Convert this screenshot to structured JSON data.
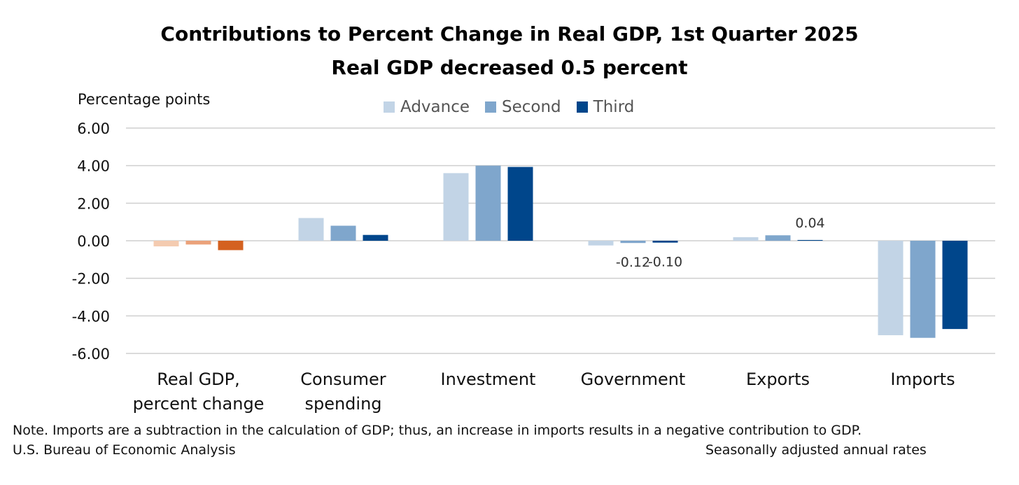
{
  "chart_data": {
    "type": "bar",
    "title": "Contributions to Percent Change in Real GDP, 1st Quarter 2025",
    "subtitle": "Real GDP decreased 0.5 percent",
    "ylabel": "Percentage points",
    "ylim": [
      -6,
      6
    ],
    "yticks": [
      "6.00",
      "4.00",
      "2.00",
      "0.00",
      "-2.00",
      "-4.00",
      "-6.00"
    ],
    "grid": true,
    "legend_position": "top",
    "categories": [
      [
        "Real GDP,",
        "percent change"
      ],
      [
        "Consumer",
        "spending"
      ],
      [
        "Investment"
      ],
      [
        "Government"
      ],
      [
        "Exports"
      ],
      [
        "Imports"
      ]
    ],
    "series": [
      {
        "name": "Advance",
        "color": "#c2d4e6",
        "first_color": "#f4cbb0",
        "values": [
          -0.3,
          1.21,
          3.6,
          -0.25,
          0.19,
          -5.03
        ]
      },
      {
        "name": "Second",
        "color": "#7fa6cc",
        "first_color": "#eba27a",
        "values": [
          -0.2,
          0.8,
          4.0,
          -0.12,
          0.29,
          -5.17
        ]
      },
      {
        "name": "Third",
        "color": "#00468b",
        "first_color": "#d46120",
        "values": [
          -0.5,
          0.31,
          3.93,
          -0.1,
          0.04,
          -4.7
        ]
      }
    ],
    "data_labels": [
      {
        "category": 3,
        "series": 1,
        "text": "-0.12"
      },
      {
        "category": 3,
        "series": 2,
        "text": "-0.10"
      },
      {
        "category": 4,
        "series": 2,
        "text": "0.04"
      }
    ]
  },
  "notes": {
    "note": "Note. Imports are a subtraction in the calculation of GDP; thus, an increase in imports results in a negative contribution to GDP.",
    "source": "U.S. Bureau of Economic Analysis",
    "basis": "Seasonally adjusted annual rates"
  }
}
